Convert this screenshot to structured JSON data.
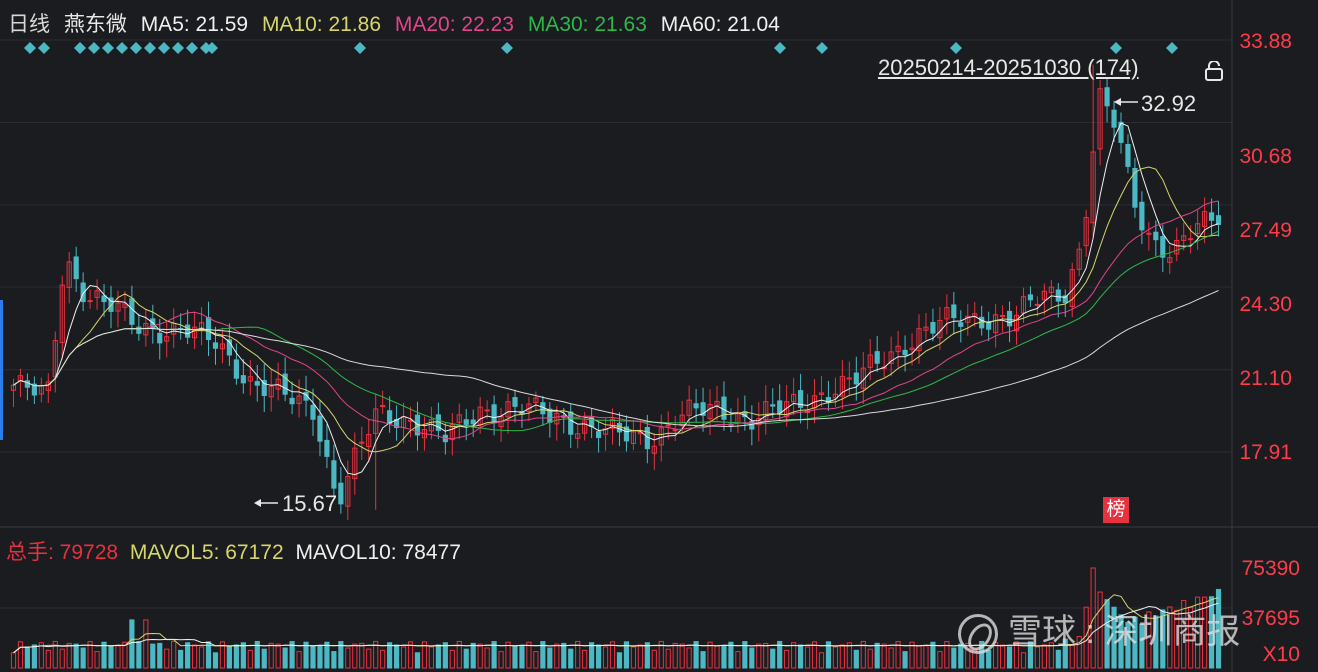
{
  "legend": {
    "period": "日线",
    "stock": "燕东微",
    "ma5": "MA5: 21.59",
    "ma10": "MA10: 21.86",
    "ma20": "MA20: 22.23",
    "ma30": "MA30: 21.63",
    "ma60": "MA60: 21.04"
  },
  "volume_legend": {
    "total": "总手: 79728",
    "mavol5": "MAVOL5: 67172",
    "mavol10": "MAVOL10: 78477"
  },
  "range_label": "20250214-20251030 (174)",
  "high_label": "32.92",
  "low_label": "15.67",
  "badge": "榜",
  "watermark": "雪球 : 深圳商报",
  "colors": {
    "up": "#e8313f",
    "down": "#4cb8c4",
    "ma5": "#f0f0f0",
    "ma10": "#d6d66a",
    "ma20": "#e0468a",
    "ma30": "#2fb84a",
    "ma60": "#f0f0f0",
    "axis_text": "#ff3b4a",
    "diamond": "#4cb8c4"
  },
  "chart_data": {
    "type": "candlestick",
    "price_axis": [
      "33.88",
      "30.68",
      "27.49",
      "24.30",
      "21.10",
      "17.91"
    ],
    "ylim": [
      15.0,
      34.6
    ],
    "volume_axis": [
      "75390",
      "37695",
      "X10"
    ],
    "vol_max": 79000,
    "markers": [
      "MA5",
      "MA10",
      "MA20",
      "MA30",
      "MA60"
    ]
  }
}
